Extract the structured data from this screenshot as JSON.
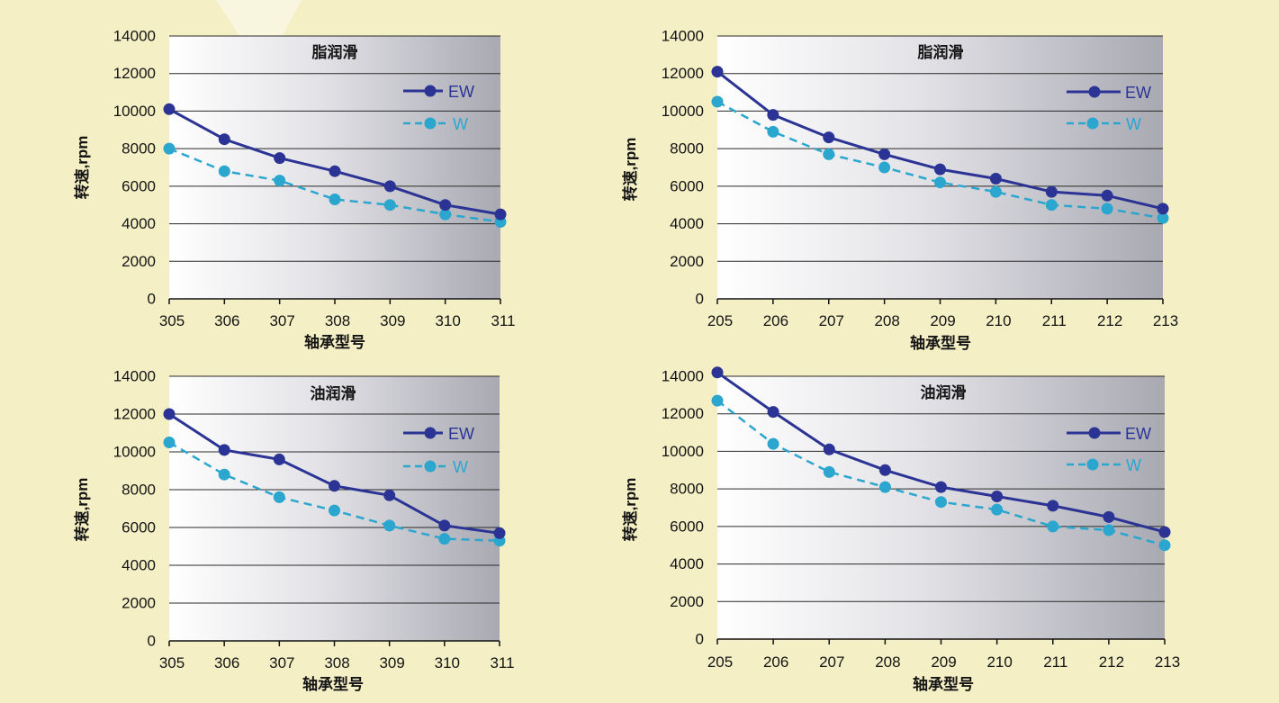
{
  "chart_data": [
    {
      "type": "line",
      "title": "脂润滑",
      "xlabel": "轴承型号",
      "ylabel": "转速,rpm",
      "categories": [
        "305",
        "306",
        "307",
        "308",
        "309",
        "310",
        "311"
      ],
      "series": [
        {
          "name": "EW",
          "values": [
            10100,
            8500,
            7500,
            6800,
            6000,
            5000,
            4500
          ],
          "color": "#2b3494",
          "line_style": "solid",
          "marker": "circle"
        },
        {
          "name": "W",
          "values": [
            8000,
            6800,
            6300,
            5300,
            5000,
            4500,
            4100
          ],
          "color": "#2ba6cf",
          "line_style": "dashed",
          "marker": "circle"
        }
      ],
      "ylim": [
        0,
        14000
      ],
      "yticks": [
        0,
        2000,
        4000,
        6000,
        8000,
        10000,
        12000,
        14000
      ],
      "grid": true,
      "legend": "top-right"
    },
    {
      "type": "line",
      "title": "脂润滑",
      "xlabel": "轴承型号",
      "ylabel": "转速,rpm",
      "categories": [
        "205",
        "206",
        "207",
        "208",
        "209",
        "210",
        "211",
        "212",
        "213"
      ],
      "series": [
        {
          "name": "EW",
          "values": [
            12100,
            9800,
            8600,
            7700,
            6900,
            6400,
            5700,
            5500,
            4800
          ],
          "color": "#2b3494",
          "line_style": "solid",
          "marker": "circle"
        },
        {
          "name": "W",
          "values": [
            10500,
            8900,
            7700,
            7000,
            6200,
            5700,
            5000,
            4800,
            4300
          ],
          "color": "#2ba6cf",
          "line_style": "dashed",
          "marker": "circle"
        }
      ],
      "ylim": [
        0,
        14000
      ],
      "yticks": [
        0,
        2000,
        4000,
        6000,
        8000,
        10000,
        12000,
        14000
      ],
      "grid": true,
      "legend": "top-right"
    },
    {
      "type": "line",
      "title": "油润滑",
      "xlabel": "轴承型号",
      "ylabel": "转速,rpm",
      "categories": [
        "305",
        "306",
        "307",
        "308",
        "309",
        "310",
        "311"
      ],
      "series": [
        {
          "name": "EW",
          "values": [
            12000,
            10100,
            9600,
            8200,
            7700,
            6100,
            5700
          ],
          "color": "#2b3494",
          "line_style": "solid",
          "marker": "circle"
        },
        {
          "name": "W",
          "values": [
            10500,
            8800,
            7600,
            6900,
            6100,
            5400,
            5300
          ],
          "color": "#2ba6cf",
          "line_style": "dashed",
          "marker": "circle"
        }
      ],
      "ylim": [
        0,
        14000
      ],
      "yticks": [
        0,
        2000,
        4000,
        6000,
        8000,
        10000,
        12000,
        14000
      ],
      "grid": true,
      "legend": "top-right"
    },
    {
      "type": "line",
      "title": "油润滑",
      "xlabel": "轴承型号",
      "ylabel": "转速,rpm",
      "categories": [
        "205",
        "206",
        "207",
        "208",
        "209",
        "210",
        "211",
        "212",
        "213"
      ],
      "series": [
        {
          "name": "EW",
          "values": [
            14200,
            12100,
            10100,
            9000,
            8100,
            7600,
            7100,
            6500,
            5700
          ],
          "color": "#2b3494",
          "line_style": "solid",
          "marker": "circle"
        },
        {
          "name": "W",
          "values": [
            12700,
            10400,
            8900,
            8100,
            7300,
            6900,
            6000,
            5800,
            5000
          ],
          "color": "#2ba6cf",
          "line_style": "dashed",
          "marker": "circle"
        }
      ],
      "ylim": [
        0,
        14000
      ],
      "yticks": [
        0,
        2000,
        4000,
        6000,
        8000,
        10000,
        12000,
        14000
      ],
      "grid": true,
      "legend": "top-right"
    }
  ]
}
